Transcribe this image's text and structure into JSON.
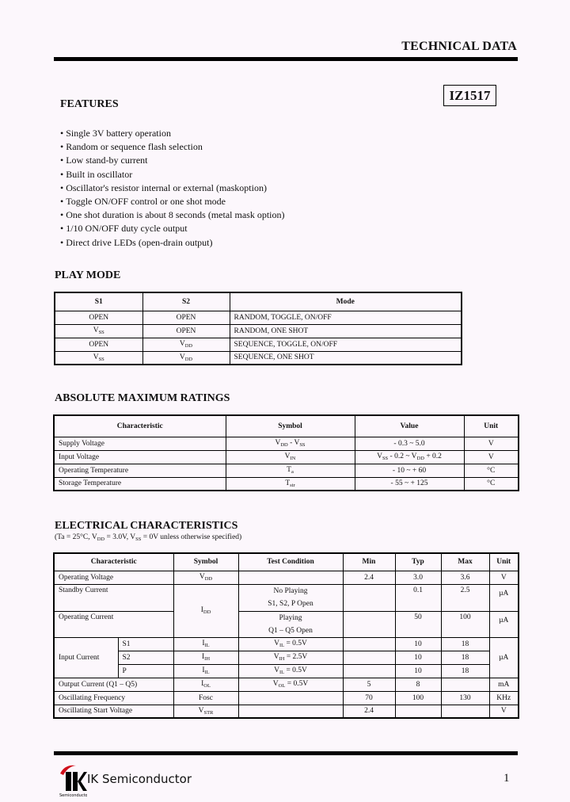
{
  "header": {
    "title": "TECHNICAL DATA",
    "part_number": "IZ1517"
  },
  "features": {
    "title": "FEATURES",
    "items": [
      "Single 3V battery operation",
      "Random or sequence flash selection",
      "Low stand-by current",
      "Built in oscillator",
      "Oscillator's resistor internal or external (maskoption)",
      "Toggle ON/OFF control or one shot mode",
      "One shot duration is about 8 seconds (metal mask option)",
      "1/10  ON/OFF  duty cycle output",
      "Direct drive LEDs (open-drain output)"
    ]
  },
  "play_mode": {
    "title": "PLAY  MODE",
    "headers": [
      "S1",
      "S2",
      "Mode"
    ],
    "rows": [
      [
        [
          "OPEN"
        ],
        [
          "OPEN"
        ],
        [
          "RANDOM, TOGGLE, ON/OFF"
        ]
      ],
      [
        [
          "V",
          {
            "sub": "SS"
          }
        ],
        [
          "OPEN"
        ],
        [
          "RANDOM, ONE SHOT"
        ]
      ],
      [
        [
          "OPEN"
        ],
        [
          "V",
          {
            "sub": "DD"
          }
        ],
        [
          "SEQUENCE,  TOGGLE,  ON/OFF"
        ]
      ],
      [
        [
          "V",
          {
            "sub": "SS"
          }
        ],
        [
          "V",
          {
            "sub": "DD"
          }
        ],
        [
          "SEQUENCE, ONE SHOT"
        ]
      ]
    ]
  },
  "abs_max": {
    "title": "ABSOLUTE MAXIMUM RATINGS",
    "headers": [
      "Characteristic",
      "Symbol",
      "Value",
      "Unit"
    ],
    "rows": [
      [
        [
          "Supply Voltage"
        ],
        [
          "V",
          {
            "sub": "DD"
          },
          " - V",
          {
            "sub": "SS"
          }
        ],
        [
          "- 0.3  ~   5.0"
        ],
        [
          "V"
        ]
      ],
      [
        [
          "Input Voltage"
        ],
        [
          "V",
          {
            "sub": "IN"
          }
        ],
        [
          "V",
          {
            "sub": "SS"
          },
          " - 0.2 ~ V",
          {
            "sub": "DD"
          },
          " + 0.2"
        ],
        [
          "V"
        ]
      ],
      [
        [
          "Operating Temperature"
        ],
        [
          "T",
          {
            "sub": "a"
          }
        ],
        [
          "- 10 ~ + 60"
        ],
        [
          "°C"
        ]
      ],
      [
        [
          "Storage Temperature"
        ],
        [
          "T",
          {
            "sub": "str"
          }
        ],
        [
          "- 55 ~ + 125"
        ],
        [
          "°C"
        ]
      ]
    ]
  },
  "electrical": {
    "title": "ELECTRICAL CHARACTERISTICS",
    "conditions": [
      "(Ta = 25°C, V",
      {
        "sub": "DD"
      },
      " = 3.0V, V",
      {
        "sub": "SS"
      },
      " = 0V  unless otherwise specified)"
    ],
    "headers": [
      "Characteristic",
      "Symbol",
      "Test Condition",
      "Min",
      "Typ",
      "Max",
      "Unit"
    ],
    "operating_voltage": {
      "name": "Operating Voltage",
      "symbol": [
        "V",
        {
          "sub": "DD"
        }
      ],
      "min": "2.4",
      "typ": "3.0",
      "max": "3.6",
      "unit": "V"
    },
    "standby_current": {
      "name": "Standby Current",
      "symbol": [
        "I",
        {
          "sub": "DD"
        }
      ],
      "cond1": "No Playing",
      "cond2": "S1, S2, P  Open",
      "typ": "0.1",
      "max": "2.5",
      "unit": "µA"
    },
    "operating_current": {
      "name": "Operating Current",
      "cond1": "Playing",
      "cond2": "Q1 – Q5  Open",
      "typ": "50",
      "max": "100",
      "unit": "µA"
    },
    "input_current": {
      "name": "Input Current",
      "unit": "µA",
      "rows": [
        {
          "pin": "S1",
          "symbol": [
            "I",
            {
              "sub": "IL"
            }
          ],
          "cond": [
            "V",
            {
              "sub": "IL"
            },
            " = 0.5V"
          ],
          "typ": "10",
          "max": "18"
        },
        {
          "pin": "S2",
          "symbol": [
            "I",
            {
              "sub": "IH"
            }
          ],
          "cond": [
            "V",
            {
              "sub": "IH"
            },
            " = 2.5V"
          ],
          "typ": "10",
          "max": "18"
        },
        {
          "pin": "P",
          "symbol": [
            "I",
            {
              "sub": "IL"
            }
          ],
          "cond": [
            "V",
            {
              "sub": "IL"
            },
            " = 0.5V"
          ],
          "typ": "10",
          "max": "18"
        }
      ]
    },
    "output_current": {
      "name": "Output Current (Q1 – Q5)",
      "symbol": [
        "I",
        {
          "sub": "OL"
        }
      ],
      "cond": [
        "V",
        {
          "sub": "OL"
        },
        " = 0.5V"
      ],
      "min": "5",
      "typ": "8",
      "unit": "mA"
    },
    "osc_freq": {
      "name": "Oscillating Frequency",
      "symbol": [
        "Fosc"
      ],
      "min": "70",
      "typ": "100",
      "max": "130",
      "unit": "KHz"
    },
    "osc_start": {
      "name": "Oscillating Start Voltage",
      "symbol": [
        "V",
        {
          "sub": "STR"
        }
      ],
      "min": "2.4",
      "unit": "V"
    }
  },
  "footer": {
    "company": "IK Semiconductor",
    "logo_text": "IK",
    "logo_subtext": "Semiconductor",
    "page_number": "1",
    "logo_color": "#d0101c"
  }
}
